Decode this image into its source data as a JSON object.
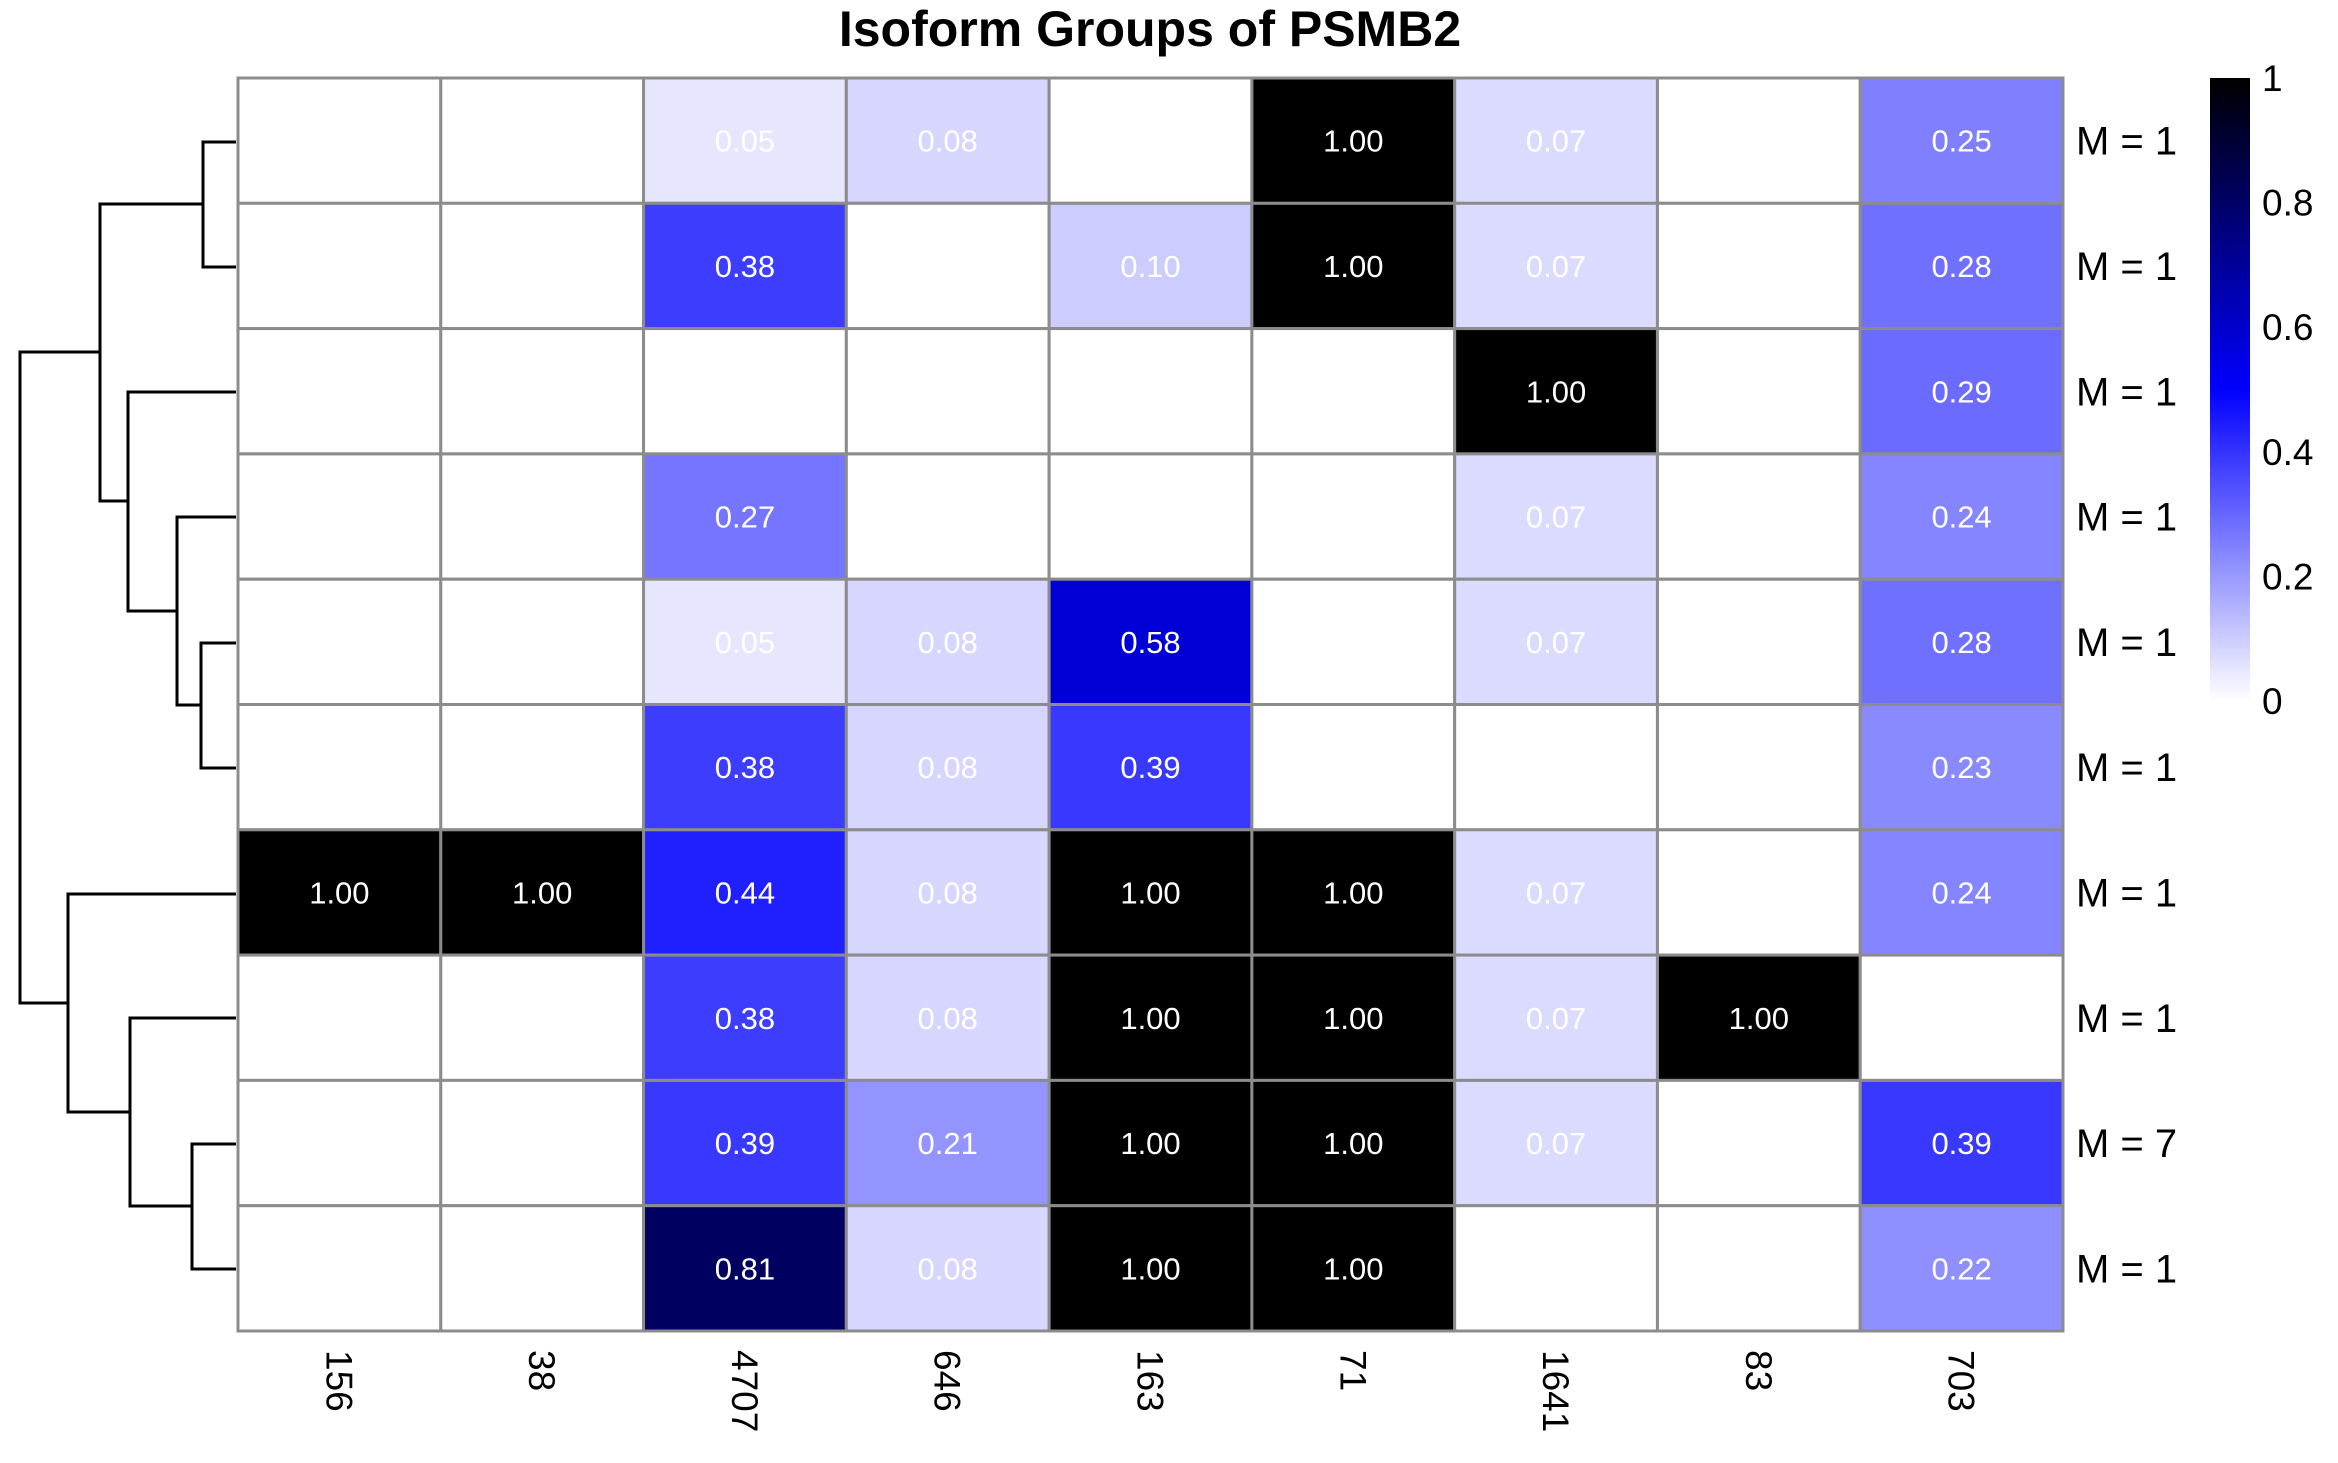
{
  "chart_data": {
    "type": "heatmap",
    "title": "Isoform Groups of PSMB2",
    "columns": [
      "156",
      "38",
      "4707",
      "646",
      "163",
      "71",
      "1641",
      "83",
      "703"
    ],
    "row_labels": [
      "M = 1",
      "M = 1",
      "M = 1",
      "M = 1",
      "M = 1",
      "M = 1",
      "M = 1",
      "M = 1",
      "M = 7",
      "M = 1"
    ],
    "values": [
      [
        0,
        0,
        0.05,
        0.08,
        0,
        1.0,
        0.07,
        0,
        0.25
      ],
      [
        0,
        0,
        0.38,
        0,
        0.1,
        1.0,
        0.07,
        0,
        0.28
      ],
      [
        0,
        0,
        0,
        0,
        0,
        0,
        1.0,
        0,
        0.29
      ],
      [
        0,
        0,
        0.27,
        0,
        0,
        0,
        0.07,
        0,
        0.24
      ],
      [
        0,
        0,
        0.05,
        0.08,
        0.58,
        0,
        0.07,
        0,
        0.28
      ],
      [
        0,
        0,
        0.38,
        0.08,
        0.39,
        0,
        0,
        0,
        0.23
      ],
      [
        1.0,
        1.0,
        0.44,
        0.08,
        1.0,
        1.0,
        0.07,
        0,
        0.24
      ],
      [
        0,
        0,
        0.38,
        0.08,
        1.0,
        1.0,
        0.07,
        1.0,
        0
      ],
      [
        0,
        0,
        0.39,
        0.21,
        1.0,
        1.0,
        0.07,
        0,
        0.39
      ],
      [
        0,
        0,
        0.81,
        0.08,
        1.0,
        1.0,
        0,
        0,
        0.22
      ]
    ],
    "cell_labels": [
      [
        "",
        "",
        "0.05",
        "0.08",
        "",
        "1.00",
        "0.07",
        "",
        "0.25"
      ],
      [
        "",
        "",
        "0.38",
        "",
        "0.10",
        "1.00",
        "0.07",
        "",
        "0.28"
      ],
      [
        "",
        "",
        "",
        "",
        "",
        "",
        "1.00",
        "",
        "0.29"
      ],
      [
        "",
        "",
        "0.27",
        "",
        "",
        "",
        "0.07",
        "",
        "0.24"
      ],
      [
        "",
        "",
        "0.05",
        "0.08",
        "0.58",
        "",
        "0.07",
        "",
        "0.28"
      ],
      [
        "",
        "",
        "0.38",
        "0.08",
        "0.39",
        "",
        "",
        "",
        "0.23"
      ],
      [
        "1.00",
        "1.00",
        "0.44",
        "0.08",
        "1.00",
        "1.00",
        "0.07",
        "",
        "0.24"
      ],
      [
        "",
        "",
        "0.38",
        "0.08",
        "1.00",
        "1.00",
        "0.07",
        "1.00",
        ""
      ],
      [
        "",
        "",
        "0.39",
        "0.21",
        "1.00",
        "1.00",
        "0.07",
        "",
        "0.39"
      ],
      [
        "",
        "",
        "0.81",
        "0.08",
        "1.00",
        "1.00",
        "",
        "",
        "0.22"
      ]
    ],
    "color_scale": {
      "range": [
        0,
        1
      ],
      "stops": [
        {
          "value": 0,
          "color": "#ffffff"
        },
        {
          "value": 0.5,
          "color": "#0000ff"
        },
        {
          "value": 1,
          "color": "#000000"
        }
      ]
    },
    "legend": {
      "position": "top-right",
      "ticks": [
        "1",
        "0.8",
        "0.6",
        "0.4",
        "0.2",
        "0"
      ]
    },
    "row_dendrogram": "left",
    "grid_color": "#8c8c8c"
  }
}
